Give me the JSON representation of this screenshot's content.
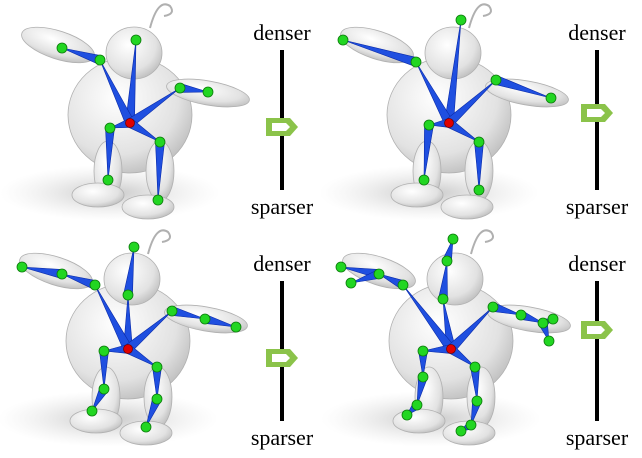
{
  "sliders": [
    {
      "top_label": "denser",
      "bottom_label": "sparser",
      "level": 0.45
    },
    {
      "top_label": "denser",
      "bottom_label": "sparser",
      "level": 0.55
    },
    {
      "top_label": "denser",
      "bottom_label": "sparser",
      "level": 0.45
    },
    {
      "top_label": "denser",
      "bottom_label": "sparser",
      "level": 0.65
    }
  ],
  "colors": {
    "bone": "#1f4fe0",
    "bone_dark": "#0a2aa8",
    "joint": "#22d622",
    "root": "#e00000",
    "thumb": "#8bc34a",
    "mesh": "#e6e6e6"
  },
  "icons": [
    "skeleton-figure",
    "slider-thumb-icon"
  ]
}
